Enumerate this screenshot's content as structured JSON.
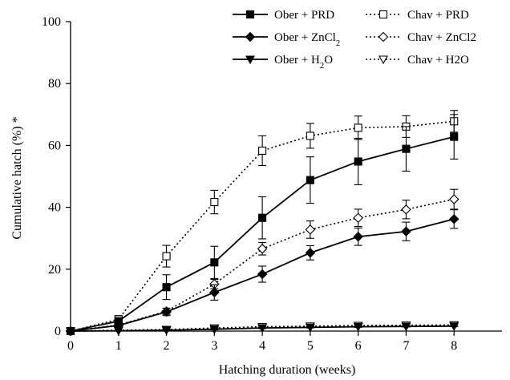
{
  "chart_data": {
    "type": "line",
    "xlabel": "Hatching duration (weeks)",
    "ylabel": "Cumulative hatch (%) *",
    "xlim": [
      0,
      9
    ],
    "ylim": [
      0,
      100
    ],
    "x_ticks": [
      0,
      1,
      2,
      3,
      4,
      5,
      6,
      7,
      8
    ],
    "y_ticks": [
      0,
      20,
      40,
      60,
      80,
      100
    ],
    "grid": false,
    "legend_position": "top-right, two columns",
    "x": [
      0,
      1,
      2,
      3,
      4,
      5,
      6,
      7,
      8
    ],
    "series": [
      {
        "name": "Ober + PRD",
        "legend_main": "Ober + PRD",
        "legend_sub": "",
        "legend_tail": "",
        "line": "solid",
        "marker": "square",
        "filled": true,
        "values": [
          0,
          3.2,
          14.2,
          22.2,
          36.6,
          48.8,
          54.8,
          58.9,
          62.8
        ],
        "errors": [
          0,
          1.0,
          4.0,
          5.2,
          6.8,
          7.5,
          7.5,
          7.2,
          7.2
        ]
      },
      {
        "name": "Ober + ZnCl2",
        "legend_main": "Ober + ZnCl",
        "legend_sub": "2",
        "legend_tail": "",
        "line": "solid",
        "marker": "diamond",
        "filled": true,
        "values": [
          0,
          1.8,
          6.2,
          12.5,
          18.4,
          25.3,
          30.5,
          32.2,
          36.2
        ],
        "errors": [
          0,
          0.7,
          1.2,
          2.5,
          2.6,
          2.3,
          2.8,
          3.0,
          3.0
        ]
      },
      {
        "name": "Ober + H2O",
        "legend_main": "Ober + H",
        "legend_sub": "2",
        "legend_tail": "O",
        "line": "solid",
        "marker": "triangle-down",
        "filled": true,
        "values": [
          0,
          0.1,
          0.3,
          0.6,
          1.0,
          1.2,
          1.4,
          1.5,
          1.6
        ],
        "errors": [
          0,
          0,
          0.2,
          0.2,
          0.2,
          0.2,
          0.2,
          0.2,
          0.2
        ]
      },
      {
        "name": "Chav + PRD",
        "legend_main": "Chav + PRD",
        "legend_sub": "",
        "legend_tail": "",
        "line": "dotted",
        "marker": "square",
        "filled": false,
        "values": [
          0,
          3.8,
          24.2,
          41.7,
          58.3,
          63.1,
          65.7,
          66.1,
          67.8
        ],
        "errors": [
          0,
          1.2,
          3.5,
          3.8,
          4.8,
          4.0,
          3.8,
          3.5,
          3.5
        ]
      },
      {
        "name": "Chav + ZnCl2",
        "legend_main": "Chav + ZnCl2",
        "legend_sub": "",
        "legend_tail": "",
        "line": "dotted",
        "marker": "diamond",
        "filled": false,
        "values": [
          0,
          2.0,
          6.4,
          15.2,
          26.6,
          32.8,
          36.6,
          39.3,
          42.6
        ],
        "errors": [
          0,
          0.7,
          1.0,
          1.5,
          2.0,
          2.8,
          2.8,
          3.0,
          3.2
        ]
      },
      {
        "name": "Chav + H2O",
        "legend_main": "Chav + H2O",
        "legend_sub": "",
        "legend_tail": "",
        "line": "dotted",
        "marker": "triangle-down",
        "filled": false,
        "values": [
          0,
          0.3,
          0.5,
          1.0,
          1.4,
          1.6,
          1.8,
          1.9,
          2.0
        ],
        "errors": [
          0,
          0,
          0.2,
          0.2,
          0.2,
          0.2,
          0.2,
          0.2,
          0.2
        ]
      }
    ]
  }
}
